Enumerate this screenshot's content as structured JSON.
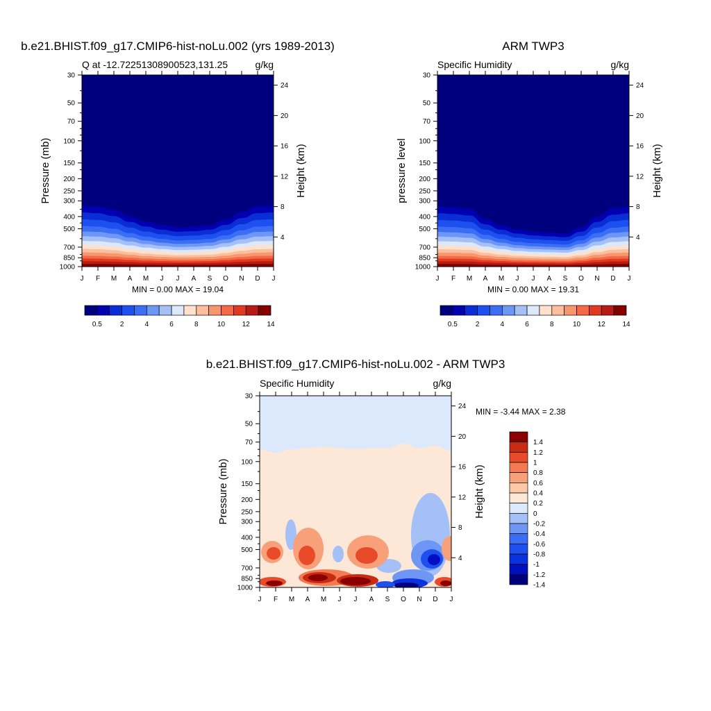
{
  "figure": {
    "months": [
      "J",
      "F",
      "M",
      "A",
      "M",
      "J",
      "J",
      "A",
      "S",
      "O",
      "N",
      "D",
      "J"
    ],
    "pressure_ticks": [
      30,
      50,
      70,
      100,
      150,
      200,
      250,
      300,
      400,
      500,
      700,
      850,
      1000
    ],
    "height_ticks_km": [
      4,
      8,
      12,
      16,
      20,
      24
    ],
    "abs_colors": [
      "#00007f",
      "#0000b2",
      "#0a2ed6",
      "#1e50f0",
      "#3c6ef5",
      "#6e96f5",
      "#a5c0f7",
      "#dce8fb",
      "#fde1cc",
      "#fbbf9e",
      "#f8966e",
      "#f46a46",
      "#e23a22",
      "#b81c10",
      "#840000"
    ],
    "abs_colorbar_labels": [
      "0.5",
      "2",
      "4",
      "6",
      "8",
      "10",
      "12",
      "14"
    ],
    "diff_colors": [
      "#00007f",
      "#0010c0",
      "#0a30e0",
      "#1e50f0",
      "#3c6ef5",
      "#6e96f5",
      "#a5c0f7",
      "#dce8fb",
      "#fde8d8",
      "#fbc8a8",
      "#f8a07a",
      "#f47a52",
      "#e84a2a",
      "#c82a12",
      "#8a0000"
    ],
    "diff_colorbar_labels": [
      "1.4",
      "1.2",
      "1",
      "0.8",
      "0.6",
      "0.4",
      "0.2",
      "0",
      "-0.2",
      "-0.4",
      "-0.6",
      "-0.8",
      "-1",
      "-1.2",
      "-1.4"
    ]
  },
  "panel1": {
    "title": "b.e21.BHIST.f09_g17.CMIP6-hist-noLu.002 (yrs 1989-2013)",
    "left_label": "Q at -12.72251308900523,131.25",
    "right_label": "g/kg",
    "y_axis_label": "Pressure (mb)",
    "y2_axis_label": "Height (km)",
    "stats": "MIN =   0.00 MAX =  19.04",
    "chart_data": {
      "type": "heatmap",
      "variable": "Specific humidity (Q)",
      "units": "g/kg",
      "x": [
        "J",
        "F",
        "M",
        "A",
        "M",
        "J",
        "J",
        "A",
        "S",
        "O",
        "N",
        "D",
        "J"
      ],
      "y_axis": "Pressure (mb)",
      "ylim": [
        30,
        1000
      ],
      "y_scale": "log",
      "levels": [
        0.5,
        1,
        2,
        3,
        4,
        5,
        6,
        7,
        8,
        9,
        10,
        11,
        12,
        13,
        14
      ],
      "dry_boundary_pressure_mb": [
        290,
        295,
        315,
        360,
        400,
        430,
        450,
        445,
        430,
        385,
        330,
        295,
        290
      ],
      "min": 0.0,
      "max": 19.04
    }
  },
  "panel2": {
    "title": "ARM TWP3",
    "left_label": "Specific Humidity",
    "right_label": "g/kg",
    "y_axis_label": "pressure level",
    "y2_axis_label": "Height (km)",
    "stats": "MIN =   0.00 MAX =  19.31",
    "chart_data": {
      "type": "heatmap",
      "variable": "Specific Humidity",
      "units": "g/kg",
      "x": [
        "J",
        "F",
        "M",
        "A",
        "M",
        "J",
        "J",
        "A",
        "S",
        "O",
        "N",
        "D",
        "J"
      ],
      "y_axis": "pressure level",
      "ylim": [
        30,
        1000
      ],
      "y_scale": "log",
      "levels": [
        0.5,
        1,
        2,
        3,
        4,
        5,
        6,
        7,
        8,
        9,
        10,
        11,
        12,
        13,
        14
      ],
      "dry_boundary_pressure_mb": [
        295,
        300,
        310,
        380,
        430,
        470,
        490,
        500,
        510,
        450,
        360,
        305,
        295
      ],
      "min": 0.0,
      "max": 19.31
    }
  },
  "panel3": {
    "title": "b.e21.BHIST.f09_g17.CMIP6-hist-noLu.002 - ARM TWP3",
    "left_label": "Specific Humidity",
    "right_label": "g/kg",
    "y_axis_label": "Pressure (mb)",
    "y2_axis_label": "Height (km)",
    "stats": "MIN =  -3.44 MAX =   2.38",
    "chart_data": {
      "type": "heatmap",
      "variable": "Specific Humidity difference (model - obs)",
      "units": "g/kg",
      "x": [
        "J",
        "F",
        "M",
        "A",
        "M",
        "J",
        "J",
        "A",
        "S",
        "O",
        "N",
        "D",
        "J"
      ],
      "y_axis": "Pressure (mb)",
      "ylim": [
        30,
        1000
      ],
      "y_scale": "log",
      "levels": [
        -1.4,
        -1.2,
        -1.0,
        -0.8,
        -0.6,
        -0.4,
        -0.2,
        0,
        0.2,
        0.4,
        0.6,
        0.8,
        1.0,
        1.2,
        1.4
      ],
      "zero_boundary_pressure_mb": [
        80,
        85,
        80,
        78,
        76,
        78,
        80,
        78,
        78,
        72,
        78,
        75,
        82
      ],
      "min": -3.44,
      "max": 2.38
    }
  }
}
